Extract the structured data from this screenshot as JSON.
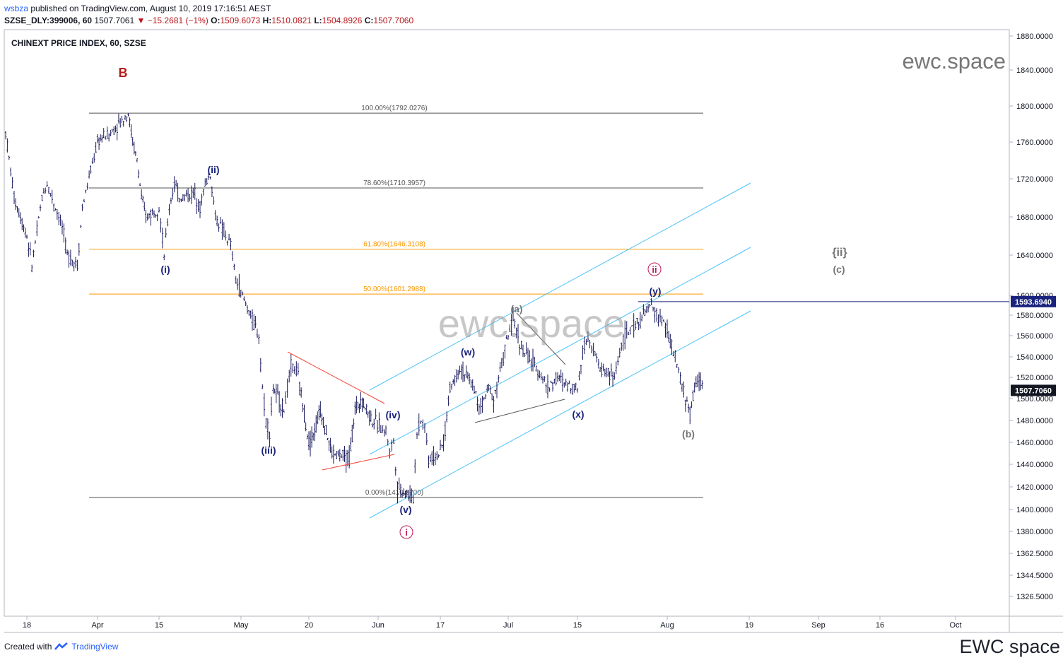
{
  "header": {
    "publisher": "wsbza",
    "published_text": "published on TradingView.com, August 10, 2019 17:16:51 AEST",
    "symbol_line": "SZSE_DLY:399006, 60",
    "last": "1507.7061",
    "change": "−15.2681 (−1%)",
    "open_label": "O:",
    "open": "1509.6073",
    "high_label": "H:",
    "high": "1510.0821",
    "low_label": "L:",
    "low": "1504.8926",
    "close_label": "C:",
    "close": "1507.7060"
  },
  "footer": {
    "created_with": "Created with",
    "brand": "TradingView",
    "watermark": "EWC space"
  },
  "colors": {
    "candle": "#1a1a5e",
    "fib_gray": "#555555",
    "fib_orange": "#ff9800",
    "channel": "#4fc3f7",
    "wave_blue": "#1a237e",
    "wave_magenta": "#c2185b",
    "wave_gray": "#757575",
    "wave_red": "#b71c1c",
    "triangle_red": "#f44336"
  },
  "chart_data": {
    "type": "ohlc",
    "title": "CHINEXT PRICE INDEX, 60, SZSE",
    "watermark_top": "ewc.space",
    "watermark_center": "ewc.space",
    "x_ticks": [
      "18",
      "Apr",
      "15",
      "May",
      "20",
      "Jun",
      "17",
      "Jul",
      "15",
      "Aug",
      "19",
      "Sep",
      "16",
      "Oct"
    ],
    "y_ticks": [
      "1880.0000",
      "1840.0000",
      "1800.0000",
      "1760.0000",
      "1720.0000",
      "1680.0000",
      "1640.0000",
      "1600.0000",
      "1580.0000",
      "1560.0000",
      "1540.0000",
      "1520.0000",
      "1500.0000",
      "1480.0000",
      "1460.0000",
      "1440.0000",
      "1420.0000",
      "1400.0000",
      "1380.0000",
      "1362.5000",
      "1344.5000",
      "1326.5000"
    ],
    "price_labels": [
      {
        "text": "1593.6940",
        "value": 1593.694
      },
      {
        "text": "1507.7060",
        "value": 1507.706
      }
    ],
    "fib_levels": [
      {
        "label": "100.00%(1792.0276)",
        "value": 1792.0276,
        "color": "gray"
      },
      {
        "label": "78.60%(1710.3957)",
        "value": 1710.3957,
        "color": "gray"
      },
      {
        "label": "61.80%(1646.3108)",
        "value": 1646.3108,
        "color": "orange"
      },
      {
        "label": "50.00%(1601.2988)",
        "value": 1601.2988,
        "color": "orange"
      },
      {
        "label": "0.00%(1410.5700)",
        "value": 1410.57,
        "color": "gray"
      }
    ],
    "wave_labels": [
      {
        "text": "B",
        "color": "red"
      },
      {
        "text": "(ii)",
        "color": "blue"
      },
      {
        "text": "(i)",
        "color": "blue"
      },
      {
        "text": "(iii)",
        "color": "blue"
      },
      {
        "text": "(iv)",
        "color": "blue"
      },
      {
        "text": "(v)",
        "color": "blue"
      },
      {
        "text": "i",
        "color": "magenta"
      },
      {
        "text": "(w)",
        "color": "blue"
      },
      {
        "text": "(a)",
        "color": "gray"
      },
      {
        "text": "(x)",
        "color": "blue"
      },
      {
        "text": "(y)",
        "color": "blue"
      },
      {
        "text": "ii",
        "color": "magenta"
      },
      {
        "text": "(b)",
        "color": "gray"
      },
      {
        "text": "{ii}",
        "color": "gray"
      },
      {
        "text": "(c)",
        "color": "gray"
      }
    ],
    "path_points": [
      [
        "Mar-13",
        1770
      ],
      [
        "Mar-15",
        1700
      ],
      [
        "Mar-18",
        1660
      ],
      [
        "Mar-19",
        1630
      ],
      [
        "Mar-21",
        1700
      ],
      [
        "Mar-22",
        1715
      ],
      [
        "Mar-25",
        1670
      ],
      [
        "Mar-26",
        1640
      ],
      [
        "Mar-28",
        1630
      ],
      [
        "Mar-29",
        1690
      ],
      [
        "Apr-01",
        1760
      ],
      [
        "Apr-02",
        1765
      ],
      [
        "Apr-04",
        1770
      ],
      [
        "Apr-08",
        1792
      ],
      [
        "Apr-09",
        1760
      ],
      [
        "Apr-10",
        1740
      ],
      [
        "Apr-11",
        1700
      ],
      [
        "Apr-12",
        1680
      ],
      [
        "Apr-15",
        1690
      ],
      [
        "Apr-16",
        1640
      ],
      [
        "Apr-17",
        1690
      ],
      [
        "Apr-18",
        1715
      ],
      [
        "Apr-19",
        1700
      ],
      [
        "Apr-22",
        1705
      ],
      [
        "Apr-23",
        1690
      ],
      [
        "Apr-24",
        1715
      ],
      [
        "Apr-25",
        1725
      ],
      [
        "Apr-26",
        1680
      ],
      [
        "Apr-29",
        1650
      ],
      [
        "Apr-30",
        1615
      ],
      [
        "May-06",
        1560
      ],
      [
        "May-07",
        1510
      ],
      [
        "May-08",
        1480
      ],
      [
        "May-09",
        1470
      ],
      [
        "May-10",
        1510
      ],
      [
        "May-13",
        1490
      ],
      [
        "May-14",
        1510
      ],
      [
        "May-15",
        1530
      ],
      [
        "May-16",
        1530
      ],
      [
        "May-17",
        1520
      ],
      [
        "May-20",
        1460
      ],
      [
        "May-21",
        1470
      ],
      [
        "May-22",
        1490
      ],
      [
        "May-23",
        1470
      ],
      [
        "May-24",
        1450
      ],
      [
        "May-27",
        1445
      ],
      [
        "May-28",
        1490
      ],
      [
        "May-29",
        1500
      ],
      [
        "May-30",
        1490
      ],
      [
        "May-31",
        1480
      ],
      [
        "Jun-03",
        1470
      ],
      [
        "Jun-04",
        1455
      ],
      [
        "Jun-05",
        1460
      ],
      [
        "Jun-06",
        1420
      ],
      [
        "Jun-10",
        1410
      ],
      [
        "Jun-11",
        1470
      ],
      [
        "Jun-12",
        1480
      ],
      [
        "Jun-13",
        1475
      ],
      [
        "Jun-14",
        1445
      ],
      [
        "Jun-17",
        1450
      ],
      [
        "Jun-18",
        1470
      ],
      [
        "Jun-19",
        1510
      ],
      [
        "Jun-20",
        1520
      ],
      [
        "Jun-21",
        1530
      ],
      [
        "Jun-24",
        1510
      ],
      [
        "Jun-25",
        1490
      ],
      [
        "Jun-26",
        1500
      ],
      [
        "Jun-27",
        1510
      ],
      [
        "Jun-28",
        1500
      ],
      [
        "Jul-01",
        1560
      ],
      [
        "Jul-02",
        1575
      ],
      [
        "Jul-03",
        1560
      ],
      [
        "Jul-04",
        1545
      ],
      [
        "Jul-05",
        1540
      ],
      [
        "Jul-08",
        1520
      ],
      [
        "Jul-09",
        1510
      ],
      [
        "Jul-10",
        1515
      ],
      [
        "Jul-11",
        1520
      ],
      [
        "Jul-12",
        1515
      ],
      [
        "Jul-15",
        1510
      ],
      [
        "Jul-16",
        1545
      ],
      [
        "Jul-17",
        1560
      ],
      [
        "Jul-18",
        1550
      ],
      [
        "Jul-19",
        1530
      ],
      [
        "Jul-22",
        1520
      ],
      [
        "Jul-23",
        1545
      ],
      [
        "Jul-24",
        1560
      ],
      [
        "Jul-25",
        1565
      ],
      [
        "Jul-26",
        1570
      ],
      [
        "Jul-29",
        1590
      ],
      [
        "Jul-30",
        1580
      ],
      [
        "Jul-31",
        1575
      ],
      [
        "Aug-01",
        1565
      ],
      [
        "Aug-02",
        1550
      ],
      [
        "Aug-05",
        1500
      ],
      [
        "Aug-06",
        1485
      ],
      [
        "Aug-07",
        1510
      ],
      [
        "Aug-08",
        1520
      ],
      [
        "Aug-09",
        1508
      ]
    ]
  }
}
